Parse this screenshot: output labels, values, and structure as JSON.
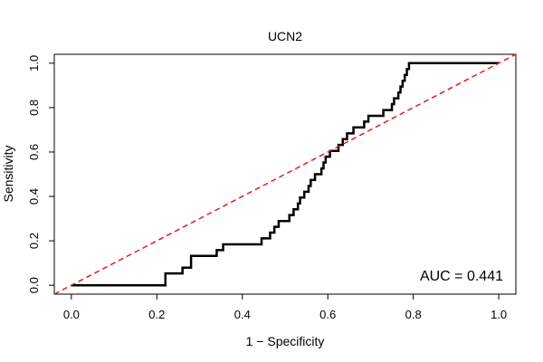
{
  "chart_data": {
    "type": "line",
    "title": "UCN2",
    "xlabel": "1 − Specificity",
    "ylabel": "Sensitivity",
    "xlim": [
      -0.04,
      1.04
    ],
    "ylim": [
      -0.04,
      1.04
    ],
    "x_ticks": [
      0.0,
      0.2,
      0.4,
      0.6,
      0.8,
      1.0
    ],
    "x_tick_labels": [
      "0.0",
      "0.2",
      "0.4",
      "0.6",
      "0.8",
      "1.0"
    ],
    "y_ticks": [
      0.0,
      0.2,
      0.4,
      0.6,
      0.8,
      1.0
    ],
    "y_tick_labels": [
      "0.0",
      "0.2",
      "0.4",
      "0.6",
      "0.8",
      "1.0"
    ],
    "grid": false,
    "annotation": "AUC = 0.441",
    "series": [
      {
        "style": "solid",
        "color": "#000000",
        "points": [
          [
            0.0,
            0.0
          ],
          [
            0.22,
            0.0
          ],
          [
            0.22,
            0.053
          ],
          [
            0.26,
            0.053
          ],
          [
            0.26,
            0.079
          ],
          [
            0.28,
            0.079
          ],
          [
            0.28,
            0.132
          ],
          [
            0.34,
            0.132
          ],
          [
            0.34,
            0.158
          ],
          [
            0.355,
            0.158
          ],
          [
            0.355,
            0.184
          ],
          [
            0.445,
            0.184
          ],
          [
            0.445,
            0.211
          ],
          [
            0.465,
            0.211
          ],
          [
            0.465,
            0.237
          ],
          [
            0.475,
            0.237
          ],
          [
            0.475,
            0.263
          ],
          [
            0.485,
            0.263
          ],
          [
            0.485,
            0.289
          ],
          [
            0.51,
            0.289
          ],
          [
            0.51,
            0.316
          ],
          [
            0.52,
            0.316
          ],
          [
            0.52,
            0.342
          ],
          [
            0.53,
            0.342
          ],
          [
            0.53,
            0.368
          ],
          [
            0.535,
            0.368
          ],
          [
            0.535,
            0.395
          ],
          [
            0.545,
            0.395
          ],
          [
            0.545,
            0.421
          ],
          [
            0.555,
            0.421
          ],
          [
            0.555,
            0.447
          ],
          [
            0.56,
            0.447
          ],
          [
            0.56,
            0.474
          ],
          [
            0.57,
            0.474
          ],
          [
            0.57,
            0.5
          ],
          [
            0.585,
            0.5
          ],
          [
            0.585,
            0.526
          ],
          [
            0.59,
            0.526
          ],
          [
            0.59,
            0.553
          ],
          [
            0.595,
            0.553
          ],
          [
            0.595,
            0.579
          ],
          [
            0.605,
            0.579
          ],
          [
            0.605,
            0.605
          ],
          [
            0.625,
            0.605
          ],
          [
            0.625,
            0.632
          ],
          [
            0.635,
            0.632
          ],
          [
            0.635,
            0.658
          ],
          [
            0.645,
            0.658
          ],
          [
            0.645,
            0.684
          ],
          [
            0.66,
            0.684
          ],
          [
            0.66,
            0.711
          ],
          [
            0.685,
            0.711
          ],
          [
            0.685,
            0.737
          ],
          [
            0.695,
            0.737
          ],
          [
            0.695,
            0.763
          ],
          [
            0.73,
            0.763
          ],
          [
            0.73,
            0.789
          ],
          [
            0.75,
            0.789
          ],
          [
            0.75,
            0.816
          ],
          [
            0.755,
            0.816
          ],
          [
            0.755,
            0.842
          ],
          [
            0.765,
            0.842
          ],
          [
            0.765,
            0.868
          ],
          [
            0.77,
            0.868
          ],
          [
            0.77,
            0.895
          ],
          [
            0.775,
            0.895
          ],
          [
            0.775,
            0.921
          ],
          [
            0.78,
            0.921
          ],
          [
            0.78,
            0.947
          ],
          [
            0.785,
            0.947
          ],
          [
            0.785,
            0.974
          ],
          [
            0.79,
            0.974
          ],
          [
            0.79,
            1.0
          ],
          [
            1.0,
            1.0
          ]
        ]
      },
      {
        "style": "dashed",
        "color": "#e41a1c",
        "points": [
          [
            -0.04,
            -0.04
          ],
          [
            1.04,
            1.04
          ]
        ]
      }
    ]
  }
}
